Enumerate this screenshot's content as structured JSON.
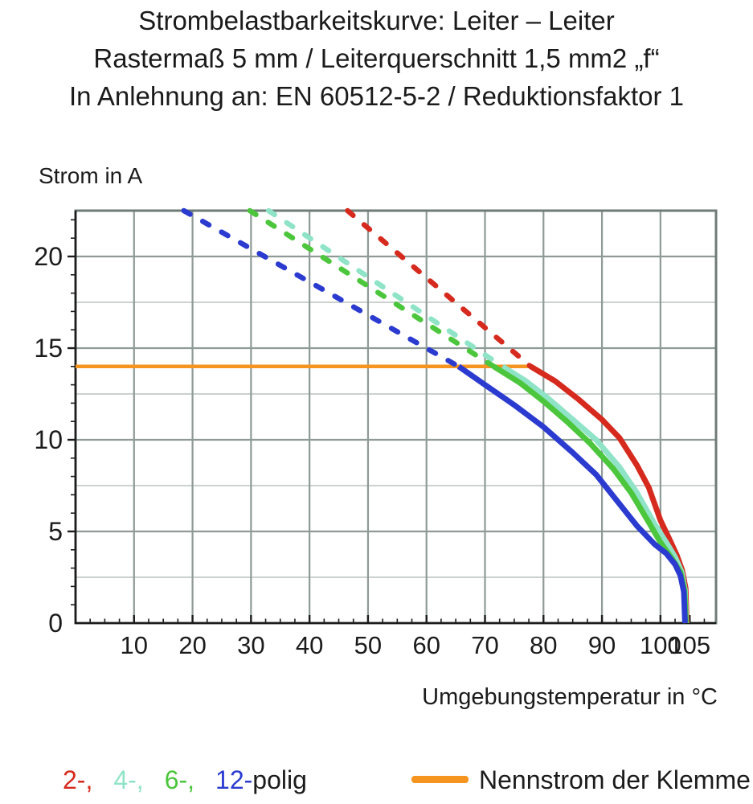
{
  "title": {
    "line1": "Strombelastbarkeitskurve: Leiter – Leiter",
    "line2": "Rastermaß 5 mm / Leiterquerschnitt 1,5 mm2 „f“",
    "line3": "In Anlehnung an: EN 60512-5-2 / Reduktionsfaktor 1"
  },
  "chart_data": {
    "type": "line",
    "y_axis_title": "Strom in A",
    "x_axis_title": "Umgebungstemperatur in °C",
    "xlim": [
      0,
      109.5
    ],
    "ylim": [
      0,
      22.5
    ],
    "x_ticks": [
      10,
      20,
      30,
      40,
      50,
      60,
      70,
      80,
      90,
      100,
      105
    ],
    "y_ticks": [
      0,
      5,
      10,
      15,
      20
    ],
    "x_minor_tick_step": 2.5,
    "y_minor_tick_step": 1,
    "grid": {
      "x_lines": [
        10,
        20,
        30,
        40,
        50,
        60,
        70,
        80,
        90,
        100
      ],
      "y_major": [
        5,
        10,
        15,
        20
      ],
      "y_minor": [
        2.5,
        7.5,
        12.5,
        17.5
      ],
      "major_color": "#8e9a96",
      "minor_color": "#b9c2bf",
      "frame_color": "#6f7b77",
      "axis_color": "#1c1c1c"
    },
    "series": [
      {
        "name": "nennstrom-der-klemme",
        "label": "Nennstrom der Klemme",
        "color": "#f5941e",
        "style": "solid",
        "width": 4.5,
        "points": [
          [
            0,
            14
          ],
          [
            77.8,
            14
          ]
        ]
      },
      {
        "name": "2-polig-dashed",
        "label": "2-polig (gestrichelt)",
        "color": "#d62a1e",
        "style": "dashed",
        "width": 6.5,
        "points": [
          [
            46.5,
            22.5
          ],
          [
            77.8,
            14
          ]
        ]
      },
      {
        "name": "4-polig-dashed",
        "label": "4-polig (gestrichelt)",
        "color": "#8fe3c7",
        "style": "dashed",
        "width": 6.5,
        "points": [
          [
            33,
            22.5
          ],
          [
            73,
            14
          ]
        ]
      },
      {
        "name": "6-polig-dashed",
        "label": "6-polig (gestrichelt)",
        "color": "#4cc63c",
        "style": "dashed",
        "width": 6.5,
        "points": [
          [
            29.8,
            22.5
          ],
          [
            71.5,
            14
          ]
        ]
      },
      {
        "name": "12-polig-dashed",
        "label": "12-polig (gestrichelt)",
        "color": "#2b3bd0",
        "style": "dashed",
        "width": 6.5,
        "points": [
          [
            18.5,
            22.5
          ],
          [
            65.5,
            14
          ]
        ]
      },
      {
        "name": "2-polig",
        "label": "2-polig",
        "color": "#d62a1e",
        "style": "solid",
        "width": 7,
        "points": [
          [
            77.8,
            14
          ],
          [
            82,
            13.2
          ],
          [
            86,
            12.2
          ],
          [
            90,
            11.1
          ],
          [
            93,
            10.1
          ],
          [
            96,
            8.6
          ],
          [
            98,
            7.4
          ],
          [
            100,
            5.6
          ],
          [
            101.5,
            4.6
          ],
          [
            102.8,
            3.7
          ],
          [
            103.7,
            2.9
          ],
          [
            104.3,
            1.9
          ],
          [
            104.5,
            0
          ]
        ]
      },
      {
        "name": "4-polig",
        "label": "4-polig",
        "color": "#8fe3c7",
        "style": "solid",
        "width": 7,
        "points": [
          [
            73,
            14
          ],
          [
            77,
            13.2
          ],
          [
            81,
            12.2
          ],
          [
            85,
            11.1
          ],
          [
            89,
            10.0
          ],
          [
            93,
            8.5
          ],
          [
            96,
            7.1
          ],
          [
            99,
            5.4
          ],
          [
            101,
            4.4
          ],
          [
            102.5,
            3.6
          ],
          [
            103.6,
            2.8
          ],
          [
            104.2,
            1.8
          ],
          [
            104.4,
            0
          ]
        ]
      },
      {
        "name": "6-polig",
        "label": "6-polig",
        "color": "#4cc63c",
        "style": "solid",
        "width": 7,
        "points": [
          [
            71.5,
            14
          ],
          [
            76,
            13.1
          ],
          [
            80,
            12.1
          ],
          [
            84,
            11.0
          ],
          [
            88,
            9.8
          ],
          [
            92,
            8.4
          ],
          [
            95,
            7.1
          ],
          [
            98,
            5.5
          ],
          [
            100,
            4.4
          ],
          [
            102,
            3.5
          ],
          [
            103.4,
            2.8
          ],
          [
            104.1,
            1.8
          ],
          [
            104.35,
            0
          ]
        ]
      },
      {
        "name": "12-polig",
        "label": "12-polig",
        "color": "#2b3bd0",
        "style": "solid",
        "width": 7,
        "points": [
          [
            65.5,
            14
          ],
          [
            70,
            13.0
          ],
          [
            75,
            11.9
          ],
          [
            80,
            10.7
          ],
          [
            85,
            9.3
          ],
          [
            89,
            8.1
          ],
          [
            93,
            6.5
          ],
          [
            96,
            5.3
          ],
          [
            99,
            4.3
          ],
          [
            101,
            3.8
          ],
          [
            102.5,
            3.2
          ],
          [
            103.4,
            2.6
          ],
          [
            104,
            1.7
          ],
          [
            104.2,
            0
          ]
        ]
      }
    ]
  },
  "legend": {
    "poles": [
      {
        "label": "2-,",
        "color": "#d62a1e"
      },
      {
        "label": "4-,",
        "color": "#8fe3c7"
      },
      {
        "label": "6-,",
        "color": "#4cc63c"
      },
      {
        "label": "12-",
        "color": "#2b3bd0"
      }
    ],
    "suffix": "polig",
    "nennstrom_label": "Nennstrom der Klemme",
    "nennstrom_color": "#f5941e"
  }
}
